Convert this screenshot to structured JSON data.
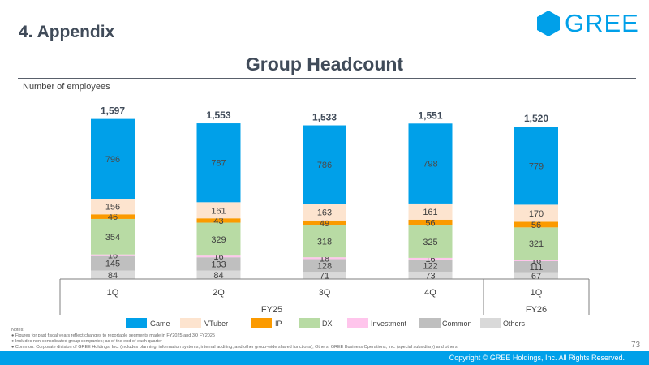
{
  "header": {
    "section": "4. Appendix",
    "logo_text": "GREE"
  },
  "chart_data": {
    "type": "bar",
    "stacked": true,
    "title": "Group Headcount",
    "ylabel": "Number of employees",
    "xlabel": "",
    "ylim": [
      0,
      1750
    ],
    "categories": [
      "1Q",
      "2Q",
      "3Q",
      "4Q",
      "1Q"
    ],
    "fiscal_years": [
      {
        "label": "FY25",
        "quarters": [
          "1Q",
          "2Q",
          "3Q",
          "4Q"
        ]
      },
      {
        "label": "FY26",
        "quarters": [
          "1Q"
        ]
      }
    ],
    "totals": [
      "1,597",
      "1,553",
      "1,533",
      "1,551",
      "1,520"
    ],
    "series": [
      {
        "name": "Others",
        "color": "#d9d9d9",
        "values": [
          84,
          84,
          71,
          73,
          67
        ]
      },
      {
        "name": "Common",
        "color": "#bfbfbf",
        "values": [
          145,
          133,
          128,
          122,
          111
        ]
      },
      {
        "name": "Investment",
        "color": "#ffc5ec",
        "values": [
          16,
          16,
          18,
          16,
          16
        ]
      },
      {
        "name": "DX",
        "color": "#b8dba4",
        "values": [
          354,
          329,
          318,
          325,
          321
        ]
      },
      {
        "name": "IP",
        "color": "#fb9a00",
        "values": [
          46,
          43,
          49,
          56,
          56
        ]
      },
      {
        "name": "VTuber",
        "color": "#fde4cf",
        "values": [
          156,
          161,
          163,
          161,
          170
        ]
      },
      {
        "name": "Game",
        "color": "#00a0e9",
        "values": [
          796,
          787,
          786,
          798,
          779
        ]
      }
    ],
    "legend_order": [
      "Game",
      "VTuber",
      "IP",
      "DX",
      "Investment",
      "Common",
      "Others"
    ],
    "legend_position": "bottom"
  },
  "notes": {
    "heading": "Notes:",
    "items": [
      "Figures for past fiscal years reflect changes to reportable segments made in FY2025 and 3Q FY2025",
      "Includes non-consolidated group companies; as of the end of each quarter",
      "Common: Corporate division of GREE Holdings, Inc. (includes planning, information systems, internal auditing, and other group-wide shared functions); Others: GREE Business Operations, Inc. (special subsidiary) and others"
    ]
  },
  "page_number": "73",
  "footer": {
    "copyright": "Copyright © GREE Holdings, Inc. All Rights Reserved."
  }
}
